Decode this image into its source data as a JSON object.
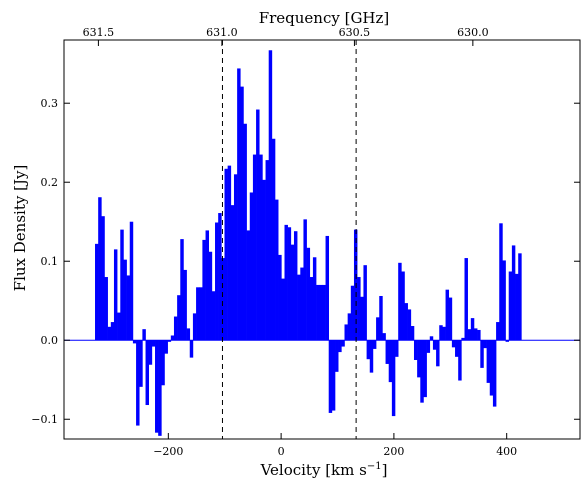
{
  "chart_data": {
    "type": "bar",
    "bar_style": "step-histogram",
    "bar_color": "#0000ff",
    "title": "",
    "xlabel": "Velocity [km s",
    "xlabel_sup": "−1",
    "xlabel_close": "]",
    "ylabel": "Flux Density [Jy]",
    "top_axis_label": "Frequency [GHz]",
    "xlim": [
      -385,
      530
    ],
    "ylim": [
      -0.125,
      0.38
    ],
    "x_ticks": [
      {
        "value": -200,
        "label": "−200"
      },
      {
        "value": 0,
        "label": "0"
      },
      {
        "value": 200,
        "label": "200"
      },
      {
        "value": 400,
        "label": "400"
      }
    ],
    "y_ticks": [
      {
        "value": -0.1,
        "label": "−0.1"
      },
      {
        "value": 0.0,
        "label": "0.0"
      },
      {
        "value": 0.1,
        "label": "0.1"
      },
      {
        "value": 0.2,
        "label": "0.2"
      },
      {
        "value": 0.3,
        "label": "0.3"
      }
    ],
    "top_ticks": [
      {
        "velocity": -324,
        "label": "631.5"
      },
      {
        "velocity": -105,
        "label": "631.0"
      },
      {
        "velocity": 130,
        "label": "630.5"
      },
      {
        "velocity": 340,
        "label": "630.0"
      }
    ],
    "vlines": [
      -104,
      133
    ],
    "grid": false,
    "legend": "none",
    "bin_width": 5.6,
    "x_start": -330,
    "values": [
      0.122,
      0.181,
      0.157,
      0.08,
      0.017,
      0.023,
      0.115,
      0.035,
      0.14,
      0.102,
      0.082,
      0.15,
      -0.004,
      -0.108,
      -0.059,
      0.014,
      -0.082,
      -0.031,
      -0.008,
      -0.117,
      -0.121,
      -0.057,
      -0.017,
      -0.002,
      0.006,
      0.03,
      0.057,
      0.128,
      0.089,
      0.015,
      -0.022,
      0.034,
      0.067,
      0.067,
      0.127,
      0.139,
      0.112,
      0.062,
      0.149,
      0.161,
      0.104,
      0.217,
      0.221,
      0.171,
      0.21,
      0.344,
      0.321,
      0.274,
      0.139,
      0.187,
      0.235,
      0.292,
      0.235,
      0.203,
      0.228,
      0.367,
      0.255,
      0.178,
      0.108,
      0.078,
      0.146,
      0.143,
      0.121,
      0.138,
      0.083,
      0.092,
      0.153,
      0.117,
      0.08,
      0.105,
      0.07,
      0.07,
      0.07,
      0.132,
      -0.092,
      -0.089,
      -0.04,
      -0.015,
      -0.008,
      0.02,
      0.034,
      0.069,
      0.14,
      0.08,
      0.055,
      0.095,
      -0.024,
      -0.041,
      -0.011,
      0.029,
      0.056,
      0.009,
      -0.03,
      -0.053,
      -0.096,
      -0.021,
      0.098,
      0.087,
      0.047,
      0.039,
      0.018,
      -0.025,
      -0.047,
      -0.079,
      -0.072,
      -0.016,
      0.005,
      -0.012,
      -0.033,
      0.019,
      0.017,
      0.064,
      0.054,
      -0.009,
      -0.021,
      -0.051,
      0.003,
      0.104,
      0.014,
      0.028,
      0.015,
      0.013,
      -0.035,
      -0.01,
      -0.054,
      -0.07,
      -0.084,
      0.023,
      0.148,
      0.101,
      -0.002,
      0.087,
      0.12,
      0.084,
      0.11
    ]
  }
}
